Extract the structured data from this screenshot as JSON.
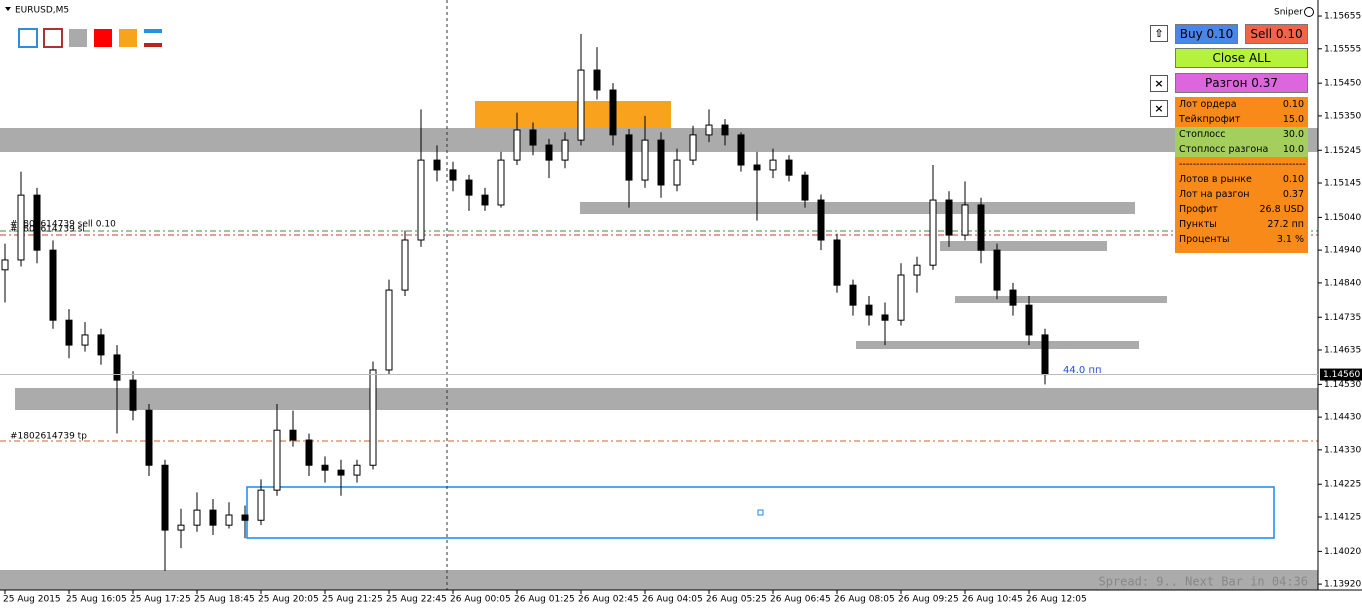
{
  "window": {
    "title": "EURUSD,M5",
    "indicator": "Sniper",
    "status": "Spread: 9.. Next Bar in 04:36"
  },
  "chart_data": {
    "type": "candlestick",
    "categories": [
      "25 Aug 2015",
      null,
      null,
      null,
      "25 Aug 16:05",
      null,
      null,
      null,
      "25 Aug 17:25",
      null,
      null,
      null,
      "25 Aug 18:45",
      null,
      null,
      null,
      "25 Aug 20:05",
      null,
      null,
      null,
      "25 Aug 21:25",
      null,
      null,
      null,
      "25 Aug 22:45",
      null,
      null,
      null,
      "26 Aug 00:05",
      null,
      null,
      null,
      "26 Aug 01:25",
      null,
      null,
      null,
      "26 Aug 02:45",
      null,
      null,
      null,
      "26 Aug 04:05",
      null,
      null,
      null,
      "26 Aug 05:25",
      null,
      null,
      null,
      "26 Aug 06:45",
      null,
      null,
      null,
      "26 Aug 08:05",
      null,
      null,
      null,
      "26 Aug 09:25",
      null,
      null,
      null,
      "26 Aug 10:45",
      null,
      null,
      null,
      "26 Aug 12:05",
      null
    ],
    "candles": [
      [
        1.1488,
        1.1496,
        1.1478,
        1.1491
      ],
      [
        1.1491,
        1.1518,
        1.1489,
        1.15108
      ],
      [
        1.15108,
        1.1513,
        1.149,
        1.1494
      ],
      [
        1.1494,
        1.1497,
        1.147,
        1.14726
      ],
      [
        1.14726,
        1.1476,
        1.1461,
        1.1465
      ],
      [
        1.1465,
        1.1472,
        1.1463,
        1.14681
      ],
      [
        1.14681,
        1.147,
        1.1459,
        1.1462
      ],
      [
        1.1462,
        1.1465,
        1.1438,
        1.14543
      ],
      [
        1.14543,
        1.1457,
        1.1442,
        1.14451
      ],
      [
        1.14451,
        1.1447,
        1.1425,
        1.14283
      ],
      [
        1.14283,
        1.143,
        1.1396,
        1.14085
      ],
      [
        1.14085,
        1.1415,
        1.1403,
        1.141
      ],
      [
        1.141,
        1.142,
        1.1408,
        1.14146
      ],
      [
        1.14146,
        1.1418,
        1.1407,
        1.141
      ],
      [
        1.141,
        1.1417,
        1.1409,
        1.14131
      ],
      [
        1.14131,
        1.1416,
        1.1406,
        1.14115
      ],
      [
        1.14115,
        1.1424,
        1.141,
        1.14207
      ],
      [
        1.14207,
        1.1447,
        1.1419,
        1.1439
      ],
      [
        1.1439,
        1.1445,
        1.1434,
        1.1436
      ],
      [
        1.1436,
        1.1438,
        1.1425,
        1.14283
      ],
      [
        1.14283,
        1.1431,
        1.1423,
        1.14268
      ],
      [
        1.14268,
        1.143,
        1.1419,
        1.14253
      ],
      [
        1.14253,
        1.143,
        1.1423,
        1.14283
      ],
      [
        1.14283,
        1.146,
        1.1427,
        1.14574
      ],
      [
        1.14574,
        1.1485,
        1.1456,
        1.14818
      ],
      [
        1.14818,
        1.15,
        1.148,
        1.14971
      ],
      [
        1.14971,
        1.1537,
        1.1495,
        1.15215
      ],
      [
        1.15215,
        1.1526,
        1.1515,
        1.15185
      ],
      [
        1.15185,
        1.1521,
        1.1512,
        1.15154
      ],
      [
        1.15154,
        1.1517,
        1.1506,
        1.15108
      ],
      [
        1.15108,
        1.1513,
        1.1506,
        1.15078
      ],
      [
        1.15078,
        1.1524,
        1.1507,
        1.15215
      ],
      [
        1.15215,
        1.1536,
        1.152,
        1.15307
      ],
      [
        1.15307,
        1.1533,
        1.1523,
        1.15261
      ],
      [
        1.15261,
        1.1528,
        1.1516,
        1.15215
      ],
      [
        1.15215,
        1.153,
        1.1519,
        1.15276
      ],
      [
        1.15276,
        1.156,
        1.1526,
        1.1549
      ],
      [
        1.1549,
        1.1556,
        1.154,
        1.15429
      ],
      [
        1.15429,
        1.1545,
        1.1526,
        1.15292
      ],
      [
        1.15292,
        1.1531,
        1.1507,
        1.15154
      ],
      [
        1.15154,
        1.1535,
        1.1513,
        1.15276
      ],
      [
        1.15276,
        1.153,
        1.151,
        1.15139
      ],
      [
        1.15139,
        1.1525,
        1.1512,
        1.15215
      ],
      [
        1.15215,
        1.1532,
        1.152,
        1.15292
      ],
      [
        1.15292,
        1.1537,
        1.1527,
        1.15322
      ],
      [
        1.15322,
        1.1534,
        1.1526,
        1.15292
      ],
      [
        1.15292,
        1.153,
        1.1518,
        1.152
      ],
      [
        1.152,
        1.1524,
        1.1503,
        1.15185
      ],
      [
        1.15185,
        1.1525,
        1.1516,
        1.15215
      ],
      [
        1.15215,
        1.1523,
        1.1515,
        1.15169
      ],
      [
        1.15169,
        1.1518,
        1.1507,
        1.15093
      ],
      [
        1.15093,
        1.1511,
        1.1494,
        1.14971
      ],
      [
        1.14971,
        1.1499,
        1.1481,
        1.14833
      ],
      [
        1.14833,
        1.1485,
        1.1474,
        1.14772
      ],
      [
        1.14772,
        1.148,
        1.1471,
        1.14742
      ],
      [
        1.14742,
        1.1478,
        1.1465,
        1.14726
      ],
      [
        1.14726,
        1.149,
        1.1471,
        1.14864
      ],
      [
        1.14864,
        1.1492,
        1.1481,
        1.14894
      ],
      [
        1.14894,
        1.152,
        1.1488,
        1.15093
      ],
      [
        1.15093,
        1.1512,
        1.1495,
        1.14986
      ],
      [
        1.14986,
        1.1515,
        1.1497,
        1.15078
      ],
      [
        1.15078,
        1.151,
        1.149,
        1.1494
      ],
      [
        1.1494,
        1.1496,
        1.1479,
        1.14818
      ],
      [
        1.14818,
        1.1484,
        1.1474,
        1.14772
      ],
      [
        1.14772,
        1.148,
        1.1465,
        1.14681
      ],
      [
        1.14681,
        1.147,
        1.1453,
        1.1456
      ]
    ],
    "ylim": [
      1.13902,
      1.15704
    ],
    "yticks": [
      1.15655,
      1.15555,
      {
        "value": 1.1545,
        "label": "1.15450"
      },
      {
        "value": 1.1535,
        "label": "1.15350"
      },
      1.15245,
      1.15145,
      {
        "value": 1.1504,
        "label": "1.15040"
      },
      {
        "value": 1.1494,
        "label": "1.14940"
      },
      {
        "value": 1.1484,
        "label": "1.14840"
      },
      1.14735,
      1.14635,
      {
        "value": 1.1453,
        "label": "1.14530"
      },
      {
        "value": 1.1443,
        "label": "1.14430"
      },
      {
        "value": 1.1433,
        "label": "1.14330"
      },
      1.14225,
      1.14125,
      {
        "value": 1.1402,
        "label": "1.14020"
      },
      {
        "value": 1.1392,
        "label": "1.13920"
      }
    ],
    "last_price": {
      "value": 1.1456,
      "label": "1.14560"
    },
    "annotations": {
      "sell": "#1802614739 sell 0.10",
      "sl": "#1802614739 sl",
      "tp": "#1802614739 tp",
      "distance": "44.0 пп"
    }
  },
  "panel": {
    "buy": "Buy 0.10",
    "sell": "Sell 0.10",
    "close_all": "Close ALL",
    "boost": "Разгон 0.37",
    "rows": [
      [
        "Лот ордера",
        "0.10"
      ],
      [
        "Тейкпрофит",
        "15.0"
      ],
      [
        "Стоплосс",
        "30.0"
      ],
      [
        "Стоплосс разгона",
        "10.0"
      ],
      [
        "-----------------------------------------",
        ""
      ],
      [
        "Лотов в рынке",
        "0.10"
      ],
      [
        "Лот на разгон",
        "0.37"
      ],
      [
        "Профит",
        "26.8 USD"
      ],
      [
        "Пункты",
        "27.2 пп"
      ],
      [
        "Проценты",
        "3.1 %"
      ]
    ]
  }
}
